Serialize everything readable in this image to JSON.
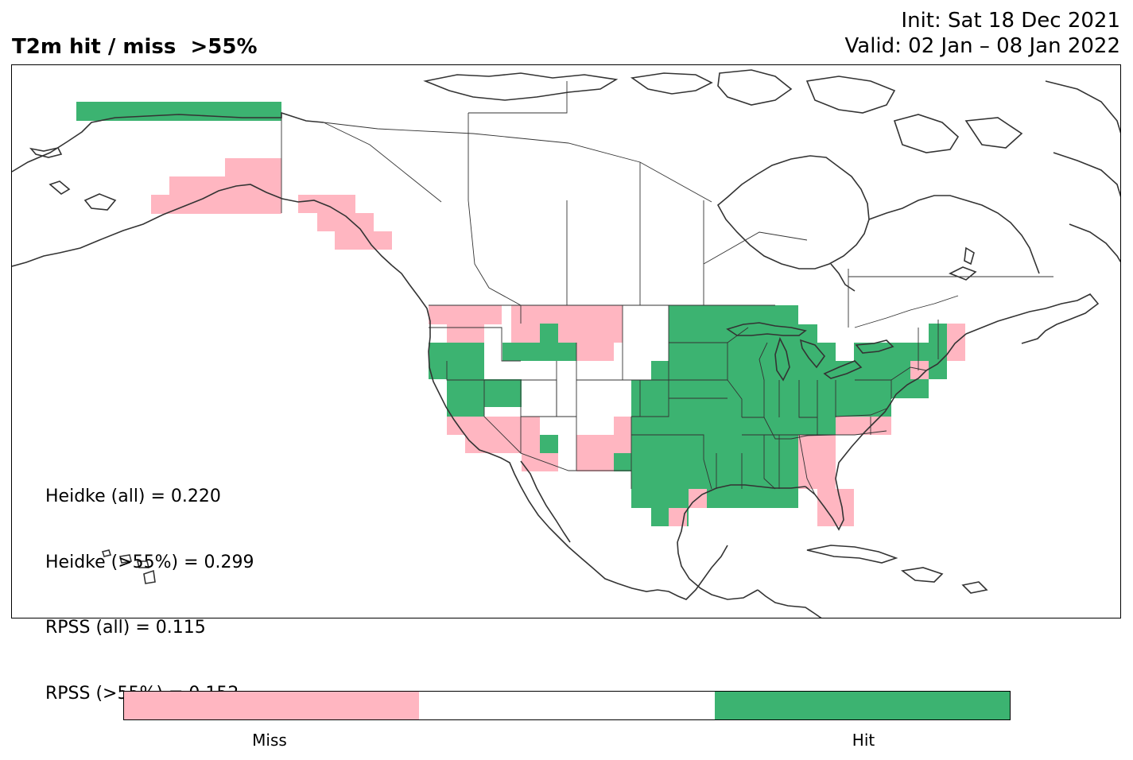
{
  "header": {
    "title": "T2m hit / miss  >55%",
    "init": "Init: Sat 18 Dec 2021",
    "valid": "Valid: 02 Jan – 08 Jan 2022"
  },
  "stats": {
    "heidke_all": "Heidke (all) = 0.220",
    "heidke_55": "Heidke (>55%) = 0.299",
    "rpss_all": "RPSS (all) = 0.115",
    "rpss_55": "RPSS (>55%) = 0.152"
  },
  "legend": {
    "miss_label": "Miss",
    "hit_label": "Hit",
    "colors": {
      "miss": "#ffb6c1",
      "neutral": "#ffffff",
      "hit": "#3cb371"
    }
  },
  "map": {
    "region": "North America",
    "categories": [
      "miss",
      "neutral",
      "hit"
    ]
  }
}
